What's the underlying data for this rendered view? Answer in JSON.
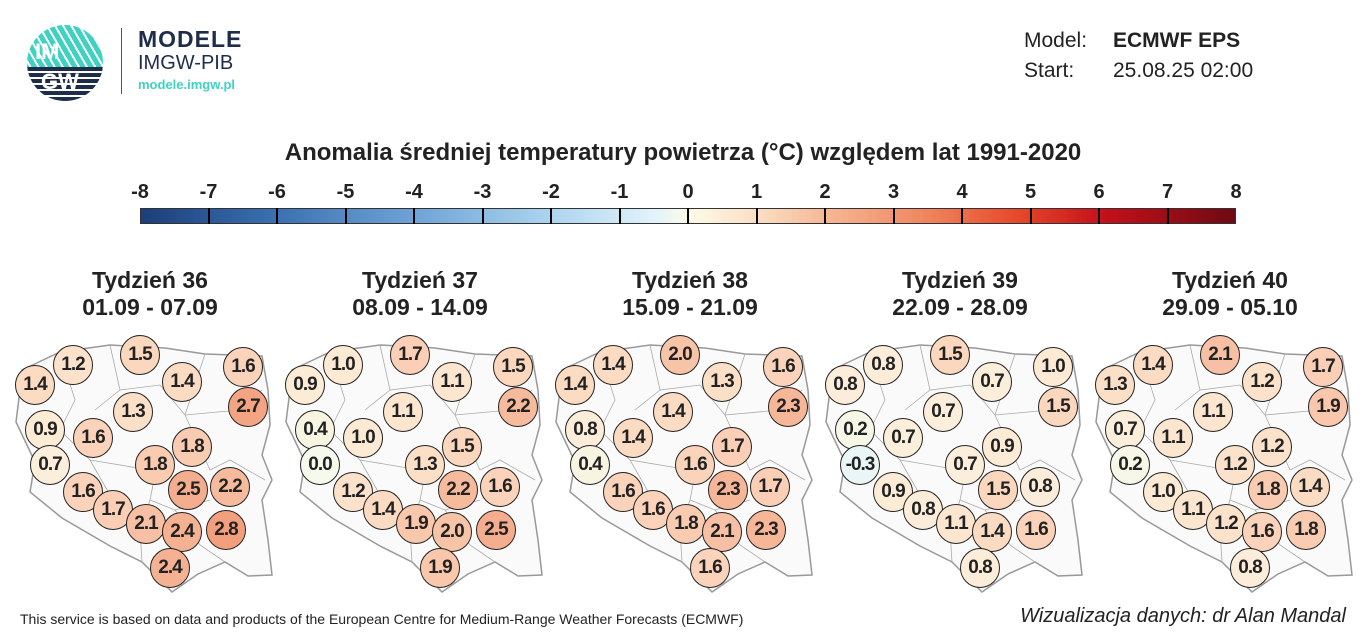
{
  "logo": {
    "mark_text_top": "IM",
    "mark_text_bottom": "GW",
    "name": "MODELE",
    "org": "IMGW-PIB",
    "url": "modele.imgw.pl"
  },
  "meta": {
    "model_label": "Model:",
    "model_value": "ECMWF EPS",
    "start_label": "Start:",
    "start_value": "25.08.25 02:00"
  },
  "title": "Anomalia średniej temperatury powietrza (°C) względem lat 1991-2020",
  "colorbar": {
    "ticks": [
      "-8",
      "-7",
      "-6",
      "-5",
      "-4",
      "-3",
      "-2",
      "-1",
      "0",
      "1",
      "2",
      "3",
      "4",
      "5",
      "6",
      "7",
      "8"
    ],
    "range": [
      -8,
      8
    ],
    "low_color": "#1c3f7a",
    "mid_color": "#fdfbe9",
    "high_color": "#6e0a14"
  },
  "weeks": [
    {
      "title": "Tydzień 36",
      "dates": "01.09 - 07.09",
      "values": [
        1.4,
        1.2,
        1.5,
        1.4,
        1.6,
        2.7,
        1.3,
        0.9,
        1.6,
        1.8,
        1.8,
        0.7,
        1.6,
        1.7,
        2.1,
        2.5,
        2.2,
        2.4,
        2.8,
        2.4
      ]
    },
    {
      "title": "Tydzień 37",
      "dates": "08.09 - 14.09",
      "values": [
        0.9,
        1.0,
        1.7,
        1.1,
        1.5,
        2.2,
        1.1,
        0.4,
        1.0,
        1.5,
        1.3,
        0.0,
        1.2,
        1.4,
        1.9,
        2.2,
        1.6,
        2.0,
        2.5,
        1.9
      ]
    },
    {
      "title": "Tydzień 38",
      "dates": "15.09 - 21.09",
      "values": [
        1.4,
        1.4,
        2.0,
        1.3,
        1.6,
        2.3,
        1.4,
        0.8,
        1.4,
        1.7,
        1.6,
        0.4,
        1.6,
        1.6,
        1.8,
        2.3,
        1.7,
        2.1,
        2.3,
        1.6
      ]
    },
    {
      "title": "Tydzień 39",
      "dates": "22.09 - 28.09",
      "values": [
        0.8,
        0.8,
        1.5,
        0.7,
        1.0,
        1.5,
        0.7,
        0.2,
        0.7,
        0.9,
        0.7,
        -0.3,
        0.9,
        0.8,
        1.1,
        1.5,
        0.8,
        1.4,
        1.6,
        0.8
      ]
    },
    {
      "title": "Tydzień 40",
      "dates": "29.09 - 05.10",
      "values": [
        1.3,
        1.4,
        2.1,
        1.2,
        1.7,
        1.9,
        1.1,
        0.7,
        1.1,
        1.2,
        1.2,
        0.2,
        1.0,
        1.1,
        1.2,
        1.8,
        1.4,
        1.6,
        1.8,
        0.8
      ]
    }
  ],
  "footer": "This service is based on data and products of the European Centre for Medium-Range Weather Forecasts (ECMWF)",
  "credit": "Wizualizacja danych: dr Alan Mandal"
}
